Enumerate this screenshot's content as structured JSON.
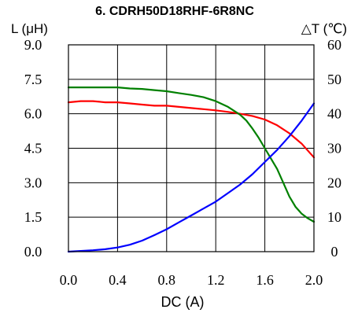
{
  "chart_data": {
    "type": "line",
    "title": "6. CDRH50D18RHF-6R8NC",
    "xlabel": "DC (A)",
    "ylabel_left": "L (μH)",
    "ylabel_right": "△T (℃)",
    "xlim": [
      0,
      2.0
    ],
    "ylim_left": [
      0,
      9.0
    ],
    "ylim_right": [
      0,
      60
    ],
    "x_ticks": [
      "0.0",
      "0.4",
      "0.8",
      "1.2",
      "1.6",
      "2.0"
    ],
    "x_tick_values": [
      0,
      0.4,
      0.8,
      1.2,
      1.6,
      2.0
    ],
    "y_left_ticks": [
      "0.0",
      "1.5",
      "3.0",
      "4.5",
      "6.0",
      "7.5",
      "9.0"
    ],
    "y_left_tick_values": [
      0,
      1.5,
      3.0,
      4.5,
      6.0,
      7.5,
      9.0
    ],
    "y_right_ticks": [
      "0",
      "10",
      "20",
      "30",
      "40",
      "50",
      "60"
    ],
    "y_right_tick_values": [
      0,
      10,
      20,
      30,
      40,
      50,
      60
    ],
    "grid": true,
    "series": [
      {
        "color": "#ff0000",
        "axis": "left",
        "x": [
          0,
          0.1,
          0.2,
          0.3,
          0.4,
          0.5,
          0.6,
          0.7,
          0.8,
          0.9,
          1.0,
          1.1,
          1.2,
          1.3,
          1.4,
          1.5,
          1.6,
          1.7,
          1.8,
          1.9,
          2.0
        ],
        "values": [
          6.5,
          6.55,
          6.55,
          6.5,
          6.5,
          6.45,
          6.4,
          6.35,
          6.35,
          6.3,
          6.25,
          6.2,
          6.15,
          6.08,
          6.0,
          5.9,
          5.75,
          5.5,
          5.15,
          4.7,
          4.1
        ]
      },
      {
        "color": "#008000",
        "axis": "left",
        "x": [
          0,
          0.2,
          0.4,
          0.5,
          0.6,
          0.7,
          0.8,
          0.9,
          1.0,
          1.1,
          1.2,
          1.3,
          1.4,
          1.45,
          1.5,
          1.55,
          1.6,
          1.65,
          1.7,
          1.75,
          1.8,
          1.85,
          1.9,
          1.95,
          2.0
        ],
        "values": [
          7.15,
          7.15,
          7.15,
          7.1,
          7.08,
          7.03,
          6.98,
          6.9,
          6.82,
          6.72,
          6.55,
          6.3,
          5.95,
          5.7,
          5.35,
          4.95,
          4.5,
          4.05,
          3.6,
          3.0,
          2.4,
          1.95,
          1.65,
          1.45,
          1.3
        ]
      },
      {
        "color": "#0000ff",
        "axis": "right",
        "x": [
          0,
          0.1,
          0.2,
          0.3,
          0.4,
          0.5,
          0.6,
          0.7,
          0.8,
          0.9,
          1.0,
          1.1,
          1.2,
          1.3,
          1.4,
          1.5,
          1.6,
          1.7,
          1.8,
          1.9,
          2.0
        ],
        "values": [
          0,
          0.2,
          0.4,
          0.7,
          1.2,
          2.0,
          3.2,
          4.8,
          6.5,
          8.5,
          10.5,
          12.5,
          14.5,
          17.0,
          19.5,
          22.5,
          26.0,
          29.5,
          33.5,
          38.0,
          43.0
        ]
      }
    ]
  }
}
